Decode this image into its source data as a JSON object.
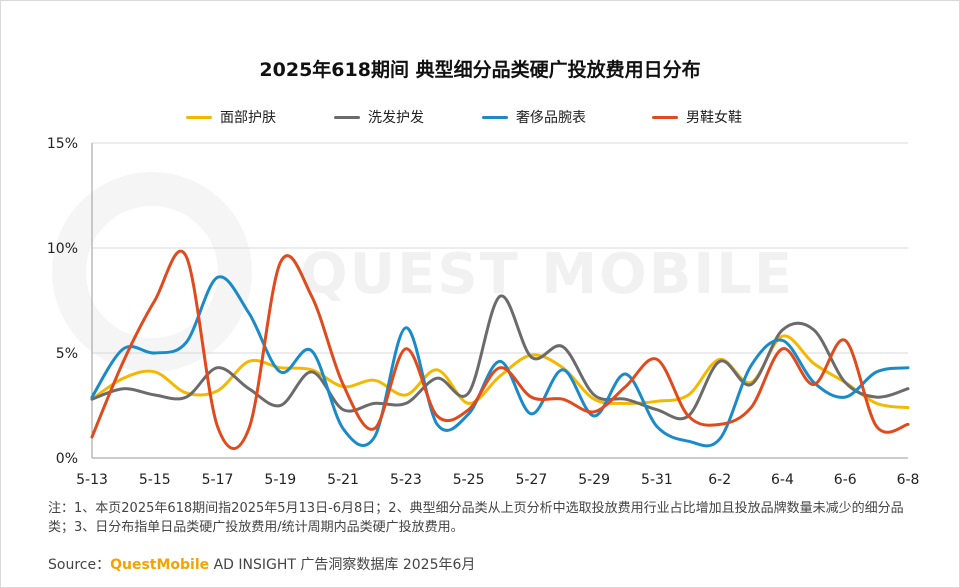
{
  "colors": {
    "background": "#ffffff",
    "grid": "#d9d9d9",
    "axis": "#999999",
    "text": "#222222"
  },
  "note_text": "注：1、本页2025年618期间指2025年5月13日-6月8日；2、典型细分品类从上页分析中选取投放费用行业占比增加且投放品牌数量未减少的细分品类；3、日分布指单日品类硬广投放费用/统计周期内品类硬广投放费用。",
  "source": {
    "label": "Source：",
    "brand": "QuestMobile",
    "rest": " AD INSIGHT 广告洞察数据库 2025年6月"
  },
  "watermark": "QUEST MOBILE",
  "chart_data": {
    "type": "line",
    "title": "2025年618期间 典型细分品类硬广投放费用日分布",
    "xlabel": "",
    "ylabel": "",
    "ylim": [
      0,
      15
    ],
    "yticks": [
      0,
      5,
      10,
      15
    ],
    "ytick_labels": [
      "0%",
      "5%",
      "10%",
      "15%"
    ],
    "x": [
      "5-13",
      "5-14",
      "5-15",
      "5-16",
      "5-17",
      "5-18",
      "5-19",
      "5-20",
      "5-21",
      "5-22",
      "5-23",
      "5-24",
      "5-25",
      "5-26",
      "5-27",
      "5-28",
      "5-29",
      "5-30",
      "5-31",
      "6-1",
      "6-2",
      "6-3",
      "6-4",
      "6-5",
      "6-6",
      "6-7",
      "6-8"
    ],
    "xtick_labels": [
      "5-13",
      "5-15",
      "5-17",
      "5-19",
      "5-21",
      "5-23",
      "5-25",
      "5-27",
      "5-29",
      "5-31",
      "6-2",
      "6-4",
      "6-6",
      "6-8"
    ],
    "grid": "horizontal",
    "legend_position": "top",
    "smooth": true,
    "series": [
      {
        "name": "面部护肤",
        "color": "#f5b800",
        "values": [
          2.8,
          3.8,
          4.1,
          3.1,
          3.2,
          4.6,
          4.3,
          4.2,
          3.4,
          3.7,
          3.0,
          4.2,
          2.6,
          3.9,
          4.9,
          4.3,
          2.8,
          2.6,
          2.7,
          3.0,
          4.7,
          3.6,
          5.8,
          4.5,
          3.6,
          2.6,
          2.4
        ]
      },
      {
        "name": "洗发护发",
        "color": "#6b6b6b",
        "values": [
          2.8,
          3.3,
          3.0,
          2.9,
          4.3,
          3.3,
          2.5,
          4.1,
          2.3,
          2.6,
          2.6,
          3.8,
          3.1,
          7.7,
          4.8,
          5.3,
          3.0,
          2.8,
          2.3,
          2.0,
          4.6,
          3.5,
          6.1,
          6.1,
          3.6,
          2.9,
          3.3
        ]
      },
      {
        "name": "奢侈品腕表",
        "color": "#1a8ac9",
        "values": [
          2.9,
          5.2,
          5.0,
          5.5,
          8.6,
          6.9,
          4.1,
          5.1,
          1.4,
          1.0,
          6.2,
          1.6,
          2.1,
          4.6,
          2.1,
          4.2,
          2.0,
          4.0,
          1.5,
          0.8,
          0.9,
          4.4,
          5.6,
          3.6,
          2.9,
          4.1,
          4.3
        ]
      },
      {
        "name": "男鞋女鞋",
        "color": "#e04a1c",
        "values": [
          1.0,
          4.6,
          7.5,
          9.6,
          1.5,
          1.4,
          9.3,
          7.7,
          3.5,
          1.4,
          5.2,
          2.0,
          2.3,
          4.3,
          2.9,
          2.8,
          2.2,
          3.4,
          4.7,
          2.0,
          1.6,
          2.4,
          5.2,
          3.5,
          5.6,
          1.5,
          1.6
        ]
      }
    ]
  }
}
